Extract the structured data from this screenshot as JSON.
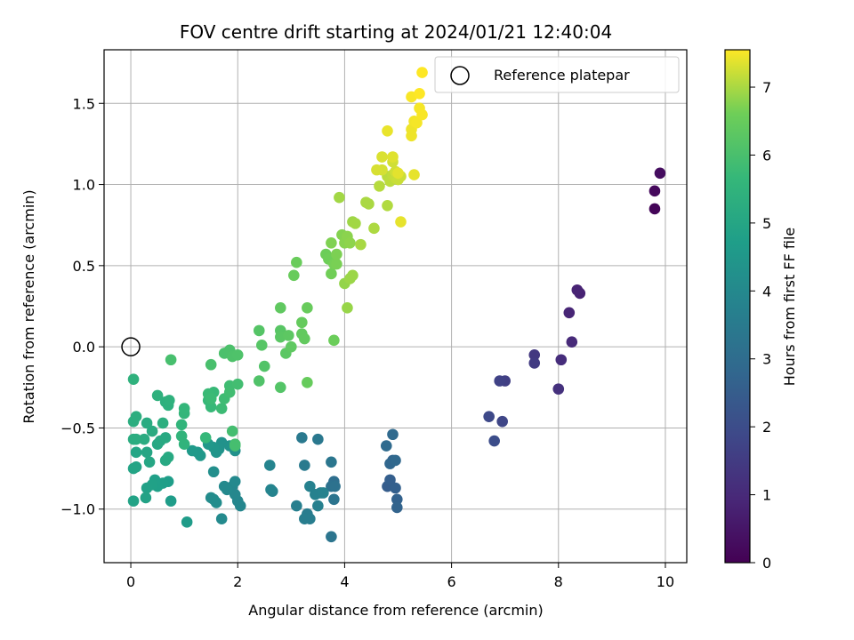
{
  "chart_data": {
    "type": "scatter",
    "title": "FOV centre drift starting at 2024/01/21 12:40:04",
    "xlabel": "Angular distance from reference (arcmin)",
    "ylabel": "Rotation from reference (arcmin)",
    "xlim": [
      -0.5,
      10.4
    ],
    "ylim": [
      -1.33,
      1.83
    ],
    "xticks": [
      0,
      2,
      4,
      6,
      8,
      10
    ],
    "xtick_labels": [
      "0",
      "2",
      "4",
      "6",
      "8",
      "10"
    ],
    "yticks": [
      -1.0,
      -0.5,
      0.0,
      0.5,
      1.0,
      1.5
    ],
    "ytick_labels": [
      "−1.0",
      "−0.5",
      "0.0",
      "0.5",
      "1.0",
      "1.5"
    ],
    "grid": true,
    "legend": {
      "position": "top-right",
      "entries": [
        "Reference platepar"
      ]
    },
    "reference_point": {
      "x": 0,
      "y": 0
    },
    "colorbar": {
      "label": "Hours from first FF file",
      "min": 0,
      "max": 7.55,
      "ticks": [
        0,
        1,
        2,
        3,
        4,
        5,
        6,
        7
      ],
      "tick_labels": [
        "0",
        "1",
        "2",
        "3",
        "4",
        "5",
        "6",
        "7"
      ],
      "colormap": "viridis"
    },
    "series": [
      {
        "points": [
          [
            9.8,
            0.85,
            0.1
          ],
          [
            9.8,
            0.96,
            0.2
          ],
          [
            9.9,
            1.07,
            0.3
          ],
          [
            8.4,
            0.33,
            0.8
          ],
          [
            8.35,
            0.35,
            0.85
          ],
          [
            8.2,
            0.21,
            0.9
          ],
          [
            8.25,
            0.03,
            1.0
          ],
          [
            8.05,
            -0.08,
            1.1
          ],
          [
            8.0,
            -0.26,
            1.2
          ],
          [
            7.55,
            -0.05,
            1.4
          ],
          [
            7.55,
            -0.1,
            1.5
          ],
          [
            7.0,
            -0.21,
            1.6
          ],
          [
            6.9,
            -0.21,
            1.7
          ],
          [
            6.95,
            -0.46,
            1.8
          ],
          [
            6.7,
            -0.43,
            1.9
          ],
          [
            6.8,
            -0.58,
            2.0
          ],
          [
            4.8,
            -0.86,
            2.5
          ],
          [
            4.85,
            -0.82,
            2.55
          ],
          [
            4.95,
            -0.87,
            2.6
          ],
          [
            4.98,
            -0.94,
            2.65
          ],
          [
            4.98,
            -0.99,
            2.7
          ],
          [
            4.9,
            -0.7,
            2.75
          ],
          [
            4.85,
            -0.72,
            2.8
          ],
          [
            4.95,
            -0.7,
            2.85
          ],
          [
            4.9,
            -0.54,
            2.9
          ],
          [
            4.78,
            -0.61,
            2.95
          ],
          [
            3.8,
            -0.83,
            3.1
          ],
          [
            3.75,
            -0.86,
            3.15
          ],
          [
            3.82,
            -0.86,
            3.2
          ],
          [
            3.8,
            -0.94,
            3.25
          ],
          [
            3.75,
            -1.17,
            3.3
          ],
          [
            3.75,
            -0.71,
            3.35
          ],
          [
            3.5,
            -0.57,
            3.4
          ],
          [
            3.2,
            -0.56,
            3.45
          ],
          [
            3.25,
            -0.73,
            3.5
          ],
          [
            3.3,
            -1.03,
            3.55
          ],
          [
            3.35,
            -1.06,
            3.6
          ],
          [
            3.25,
            -1.06,
            3.6
          ],
          [
            3.1,
            -0.98,
            3.65
          ],
          [
            3.5,
            -0.98,
            3.7
          ],
          [
            3.55,
            -0.9,
            3.7
          ],
          [
            3.45,
            -0.91,
            3.75
          ],
          [
            3.35,
            -0.86,
            3.75
          ],
          [
            3.6,
            -0.9,
            3.78
          ],
          [
            2.65,
            -0.89,
            3.8
          ],
          [
            2.6,
            -0.73,
            3.85
          ],
          [
            2.62,
            -0.88,
            3.85
          ],
          [
            2.0,
            -0.95,
            3.9
          ],
          [
            2.05,
            -0.98,
            3.92
          ],
          [
            1.95,
            -0.91,
            3.95
          ],
          [
            1.9,
            -0.86,
            3.95
          ],
          [
            1.95,
            -0.83,
            4.0
          ],
          [
            1.8,
            -0.88,
            4.0
          ],
          [
            1.75,
            -0.86,
            4.02
          ],
          [
            1.7,
            -1.06,
            4.05
          ],
          [
            1.55,
            -0.94,
            4.1
          ],
          [
            1.5,
            -0.93,
            4.1
          ],
          [
            1.6,
            -0.96,
            4.15
          ],
          [
            1.55,
            -0.77,
            4.2
          ],
          [
            1.95,
            -0.64,
            4.25
          ],
          [
            1.85,
            -0.61,
            4.3
          ],
          [
            1.7,
            -0.59,
            4.3
          ],
          [
            1.65,
            -0.63,
            4.35
          ],
          [
            1.6,
            -0.65,
            4.4
          ],
          [
            1.55,
            -0.62,
            4.45
          ],
          [
            1.45,
            -0.6,
            4.5
          ],
          [
            1.3,
            -0.67,
            4.5
          ],
          [
            1.25,
            -0.65,
            4.55
          ],
          [
            1.15,
            -0.64,
            4.6
          ],
          [
            1.05,
            -1.08,
            4.65
          ],
          [
            0.75,
            -0.95,
            4.7
          ],
          [
            0.7,
            -0.83,
            4.72
          ],
          [
            0.6,
            -0.84,
            4.75
          ],
          [
            0.5,
            -0.86,
            4.78
          ],
          [
            0.45,
            -0.82,
            4.8
          ],
          [
            0.4,
            -0.85,
            4.82
          ],
          [
            0.3,
            -0.87,
            4.85
          ],
          [
            0.28,
            -0.93,
            4.88
          ],
          [
            0.05,
            -0.95,
            4.9
          ],
          [
            0.1,
            -0.74,
            4.92
          ],
          [
            0.05,
            -0.75,
            4.95
          ],
          [
            0.1,
            -0.65,
            4.98
          ],
          [
            0.3,
            -0.65,
            5.0
          ],
          [
            0.35,
            -0.71,
            5.02
          ],
          [
            0.5,
            -0.6,
            5.05
          ],
          [
            0.55,
            -0.58,
            5.1
          ],
          [
            0.65,
            -0.7,
            5.1
          ],
          [
            0.7,
            -0.68,
            5.12
          ],
          [
            0.65,
            -0.56,
            5.15
          ],
          [
            0.4,
            -0.52,
            5.18
          ],
          [
            0.3,
            -0.47,
            5.2
          ],
          [
            0.25,
            -0.57,
            5.22
          ],
          [
            0.05,
            -0.57,
            5.25
          ],
          [
            0.1,
            -0.57,
            5.25
          ],
          [
            0.05,
            -0.46,
            5.28
          ],
          [
            0.1,
            -0.43,
            5.3
          ],
          [
            0.6,
            -0.47,
            5.32
          ],
          [
            0.65,
            -0.34,
            5.35
          ],
          [
            0.7,
            -0.36,
            5.38
          ],
          [
            0.5,
            -0.3,
            5.4
          ],
          [
            0.72,
            -0.33,
            5.42
          ],
          [
            0.05,
            -0.2,
            5.45
          ],
          [
            1.0,
            -0.6,
            5.5
          ],
          [
            0.95,
            -0.55,
            5.52
          ],
          [
            0.95,
            -0.48,
            5.55
          ],
          [
            1.0,
            -0.41,
            5.6
          ],
          [
            1.0,
            -0.38,
            5.62
          ],
          [
            1.4,
            -0.56,
            5.65
          ],
          [
            1.45,
            -0.33,
            5.68
          ],
          [
            1.5,
            -0.37,
            5.7
          ],
          [
            1.55,
            -0.28,
            5.72
          ],
          [
            1.45,
            -0.29,
            5.75
          ],
          [
            1.5,
            -0.32,
            5.78
          ],
          [
            1.7,
            -0.38,
            5.8
          ],
          [
            1.75,
            -0.32,
            5.82
          ],
          [
            1.85,
            -0.24,
            5.85
          ],
          [
            1.85,
            -0.28,
            5.88
          ],
          [
            2.0,
            -0.23,
            5.9
          ],
          [
            1.9,
            -0.52,
            5.92
          ],
          [
            1.95,
            -0.6,
            5.95
          ],
          [
            1.95,
            -0.61,
            5.95
          ],
          [
            0.75,
            -0.08,
            5.98
          ],
          [
            1.5,
            -0.11,
            6.0
          ],
          [
            1.75,
            -0.04,
            6.02
          ],
          [
            1.85,
            -0.02,
            6.05
          ],
          [
            1.9,
            -0.06,
            6.08
          ],
          [
            2.0,
            -0.05,
            6.1
          ],
          [
            2.4,
            -0.21,
            6.12
          ],
          [
            2.5,
            -0.12,
            6.15
          ],
          [
            2.8,
            -0.25,
            6.18
          ],
          [
            2.4,
            0.1,
            6.2
          ],
          [
            2.45,
            0.01,
            6.22
          ],
          [
            2.8,
            0.1,
            6.25
          ],
          [
            2.8,
            0.06,
            6.28
          ],
          [
            2.9,
            -0.04,
            6.3
          ],
          [
            2.95,
            0.07,
            6.32
          ],
          [
            3.0,
            0.0,
            6.35
          ],
          [
            2.8,
            0.24,
            6.38
          ],
          [
            3.2,
            0.08,
            6.4
          ],
          [
            3.25,
            0.05,
            6.42
          ],
          [
            3.2,
            0.15,
            6.45
          ],
          [
            3.3,
            -0.22,
            6.48
          ],
          [
            3.3,
            0.24,
            6.5
          ],
          [
            3.05,
            0.44,
            6.5
          ],
          [
            3.1,
            0.52,
            6.52
          ],
          [
            3.8,
            0.04,
            6.55
          ],
          [
            3.65,
            0.57,
            6.58
          ],
          [
            3.7,
            0.54,
            6.6
          ],
          [
            3.75,
            0.45,
            6.62
          ],
          [
            3.8,
            0.51,
            6.65
          ],
          [
            3.85,
            0.51,
            6.68
          ],
          [
            3.85,
            0.57,
            6.7
          ],
          [
            3.75,
            0.64,
            6.72
          ],
          [
            3.95,
            0.69,
            6.75
          ],
          [
            4.0,
            0.64,
            6.78
          ],
          [
            4.05,
            0.68,
            6.8
          ],
          [
            4.1,
            0.64,
            6.82
          ],
          [
            4.0,
            0.39,
            6.85
          ],
          [
            4.05,
            0.24,
            6.88
          ],
          [
            4.1,
            0.42,
            6.9
          ],
          [
            4.15,
            0.44,
            6.9
          ],
          [
            4.15,
            0.77,
            6.92
          ],
          [
            4.2,
            0.76,
            6.95
          ],
          [
            3.9,
            0.92,
            6.95
          ],
          [
            4.3,
            0.63,
            6.98
          ],
          [
            4.4,
            0.89,
            7.0
          ],
          [
            4.45,
            0.88,
            7.0
          ],
          [
            4.55,
            0.73,
            7.02
          ],
          [
            4.8,
            0.87,
            7.05
          ],
          [
            4.65,
            0.99,
            7.08
          ],
          [
            4.8,
            1.05,
            7.1
          ],
          [
            4.85,
            1.02,
            7.12
          ],
          [
            4.9,
            1.06,
            7.15
          ],
          [
            4.95,
            1.04,
            7.18
          ],
          [
            5.0,
            1.03,
            7.2
          ],
          [
            5.05,
            1.05,
            7.22
          ],
          [
            4.9,
            1.14,
            7.25
          ],
          [
            4.95,
            1.08,
            7.25
          ],
          [
            4.7,
            1.09,
            7.28
          ],
          [
            4.6,
            1.09,
            7.3
          ],
          [
            4.7,
            1.17,
            7.32
          ],
          [
            4.9,
            1.17,
            7.35
          ],
          [
            5.0,
            1.07,
            7.38
          ],
          [
            5.05,
            0.77,
            7.4
          ],
          [
            5.3,
            1.06,
            7.4
          ],
          [
            4.8,
            1.33,
            7.42
          ],
          [
            5.25,
            1.3,
            7.45
          ],
          [
            5.25,
            1.34,
            7.45
          ],
          [
            5.3,
            1.39,
            7.48
          ],
          [
            5.35,
            1.38,
            7.5
          ],
          [
            5.4,
            1.47,
            7.5
          ],
          [
            5.45,
            1.43,
            7.52
          ],
          [
            5.25,
            1.54,
            7.52
          ],
          [
            5.4,
            1.56,
            7.55
          ],
          [
            5.45,
            1.69,
            7.55
          ]
        ]
      }
    ]
  }
}
